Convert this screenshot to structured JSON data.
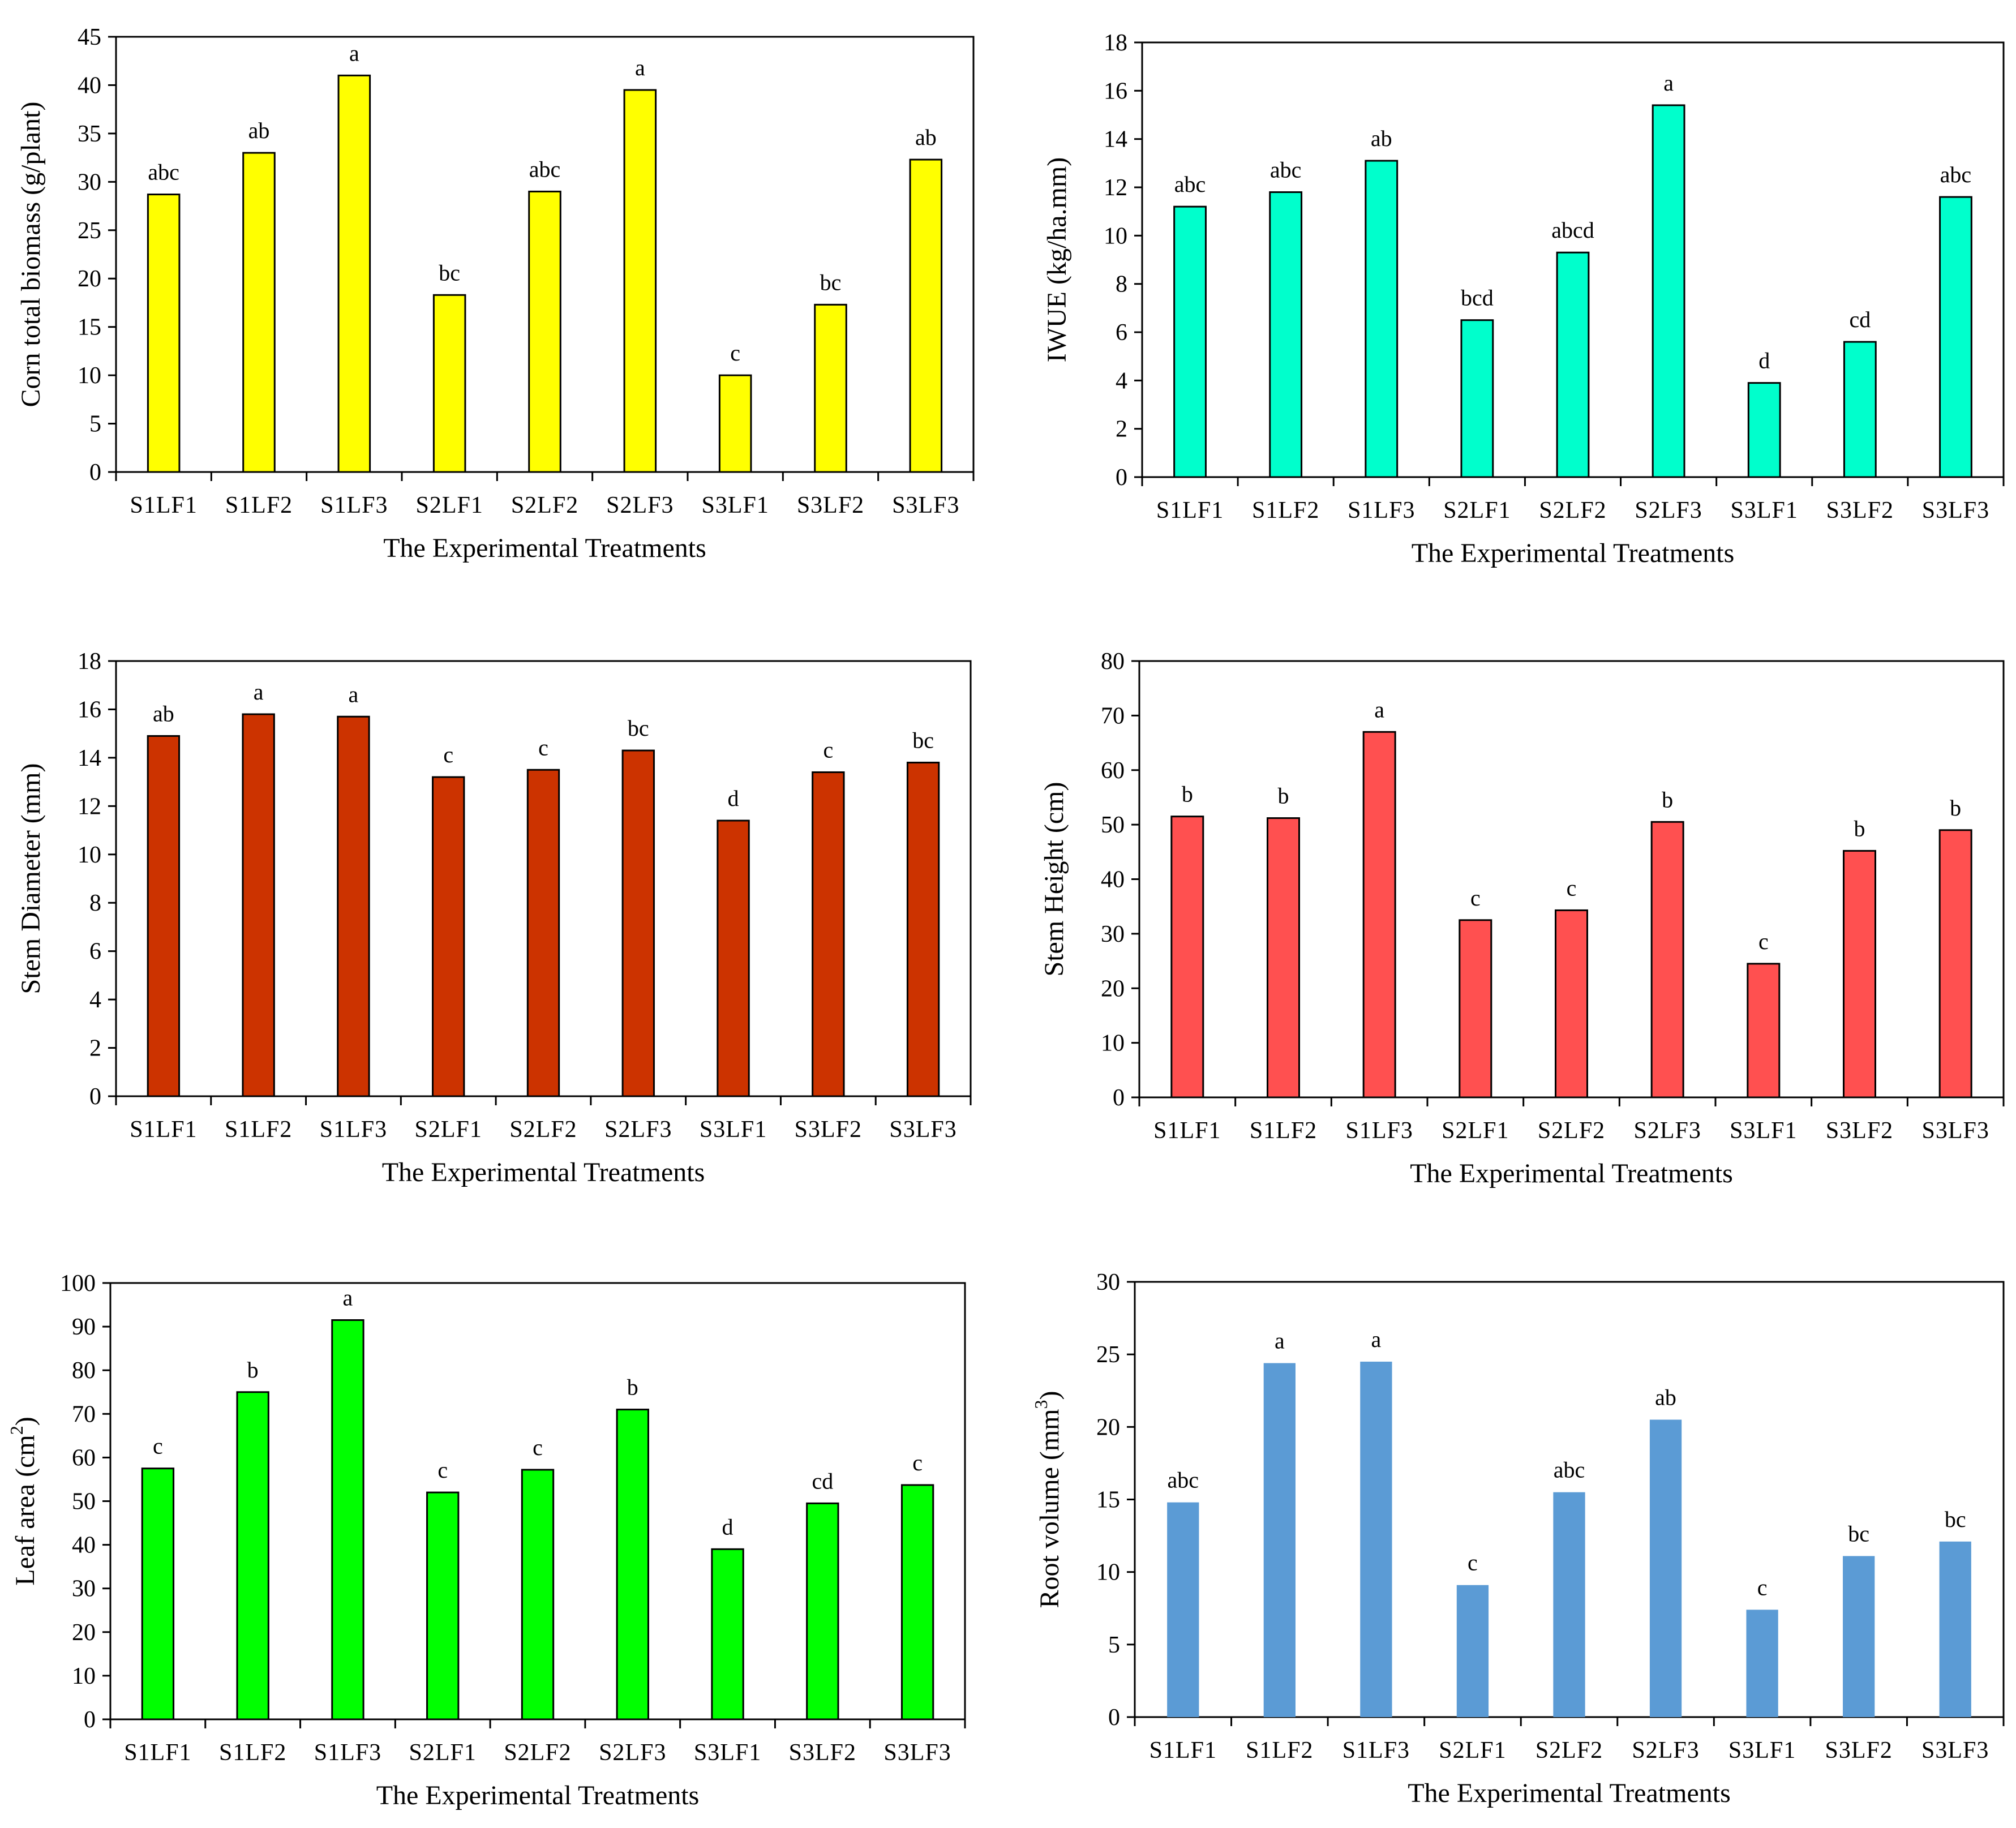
{
  "chart_data": [
    {
      "type": "bar",
      "categories": [
        "S1LF1",
        "S1LF2",
        "S1LF3",
        "S2LF1",
        "S2LF2",
        "S2LF3",
        "S3LF1",
        "S3LF2",
        "S3LF3"
      ],
      "values": [
        28.7,
        33.0,
        41.0,
        18.3,
        29.0,
        39.5,
        10.0,
        17.3,
        32.3
      ],
      "letters": [
        "abc",
        "ab",
        "a",
        "bc",
        "abc",
        "a",
        "c",
        "bc",
        "ab"
      ],
      "xlabel": "The Experimental Treatments",
      "ylabel": "Corn total biomass (g/plant)",
      "ylim": [
        0,
        45
      ],
      "yticks": [
        0,
        5,
        10,
        15,
        20,
        25,
        30,
        35,
        40,
        45
      ],
      "bar_color": "#ffff00",
      "bar_outline": true,
      "grid": false
    },
    {
      "type": "bar",
      "categories": [
        "S1LF1",
        "S1LF2",
        "S1LF3",
        "S2LF1",
        "S2LF2",
        "S2LF3",
        "S3LF1",
        "S3LF2",
        "S3LF3"
      ],
      "values": [
        11.2,
        11.8,
        13.1,
        6.5,
        9.3,
        15.4,
        3.9,
        5.6,
        11.6
      ],
      "letters": [
        "abc",
        "abc",
        "ab",
        "bcd",
        "abcd",
        "a",
        "d",
        "cd",
        "abc"
      ],
      "xlabel": "The Experimental Treatments",
      "ylabel": "IWUE (kg/ha.mm)",
      "ylim": [
        0,
        18
      ],
      "yticks": [
        0,
        2,
        4,
        6,
        8,
        10,
        12,
        14,
        16,
        18
      ],
      "bar_color": "#00ffcc",
      "bar_outline": true,
      "grid": false
    },
    {
      "type": "bar",
      "categories": [
        "S1LF1",
        "S1LF2",
        "S1LF3",
        "S2LF1",
        "S2LF2",
        "S2LF3",
        "S3LF1",
        "S3LF2",
        "S3LF3"
      ],
      "values": [
        14.9,
        15.8,
        15.7,
        13.2,
        13.5,
        14.3,
        11.4,
        13.4,
        13.8
      ],
      "letters": [
        "ab",
        "a",
        "a",
        "c",
        "c",
        "bc",
        "d",
        "c",
        "bc"
      ],
      "xlabel": "The Experimental Treatments",
      "ylabel": "Stem Diameter (mm)",
      "ylim": [
        0,
        18
      ],
      "yticks": [
        0,
        2,
        4,
        6,
        8,
        10,
        12,
        14,
        16,
        18
      ],
      "bar_color": "#cc3300",
      "bar_outline": true,
      "grid": false
    },
    {
      "type": "bar",
      "categories": [
        "S1LF1",
        "S1LF2",
        "S1LF3",
        "S2LF1",
        "S2LF2",
        "S2LF3",
        "S3LF1",
        "S3LF2",
        "S3LF3"
      ],
      "values": [
        51.5,
        51.2,
        67.0,
        32.5,
        34.3,
        50.5,
        24.5,
        45.2,
        49.0
      ],
      "letters": [
        "b",
        "b",
        "a",
        "c",
        "c",
        "b",
        "c",
        "b",
        "b"
      ],
      "xlabel": "The Experimental Treatments",
      "ylabel": "Stem Height (cm)",
      "ylim": [
        0,
        80
      ],
      "yticks": [
        0,
        10,
        20,
        30,
        40,
        50,
        60,
        70,
        80
      ],
      "bar_color": "#ff5050",
      "bar_outline": true,
      "grid": false
    },
    {
      "type": "bar",
      "categories": [
        "S1LF1",
        "S1LF2",
        "S1LF3",
        "S2LF1",
        "S2LF2",
        "S2LF3",
        "S3LF1",
        "S3LF2",
        "S3LF3"
      ],
      "values": [
        57.5,
        75.0,
        91.5,
        52.0,
        57.2,
        71.0,
        39.0,
        49.5,
        53.7
      ],
      "letters": [
        "c",
        "b",
        "a",
        "c",
        "c",
        "b",
        "d",
        "cd",
        "c"
      ],
      "xlabel": "The Experimental Treatments",
      "ylabel": "Leaf area (cm",
      "ylabel_sup": "2",
      "ylabel_end": ")",
      "ylim": [
        0,
        100
      ],
      "yticks": [
        0,
        10,
        20,
        30,
        40,
        50,
        60,
        70,
        80,
        90,
        100
      ],
      "bar_color": "#00ff00",
      "bar_outline": true,
      "grid": false
    },
    {
      "type": "bar",
      "categories": [
        "S1LF1",
        "S1LF2",
        "S1LF3",
        "S2LF1",
        "S2LF2",
        "S2LF3",
        "S3LF1",
        "S3LF2",
        "S3LF3"
      ],
      "values": [
        14.8,
        24.4,
        24.5,
        9.1,
        15.5,
        20.5,
        7.4,
        11.1,
        12.1
      ],
      "letters": [
        "abc",
        "a",
        "a",
        "c",
        "abc",
        "ab",
        "c",
        "bc",
        "bc"
      ],
      "xlabel": "The Experimental Treatments",
      "ylabel": "Root volume (mm",
      "ylabel_sup": "3",
      "ylabel_end": ")",
      "ylim": [
        0,
        30
      ],
      "yticks": [
        0,
        5,
        10,
        15,
        20,
        25,
        30
      ],
      "bar_color": "#5b9bd5",
      "bar_outline": false,
      "grid": false
    }
  ]
}
